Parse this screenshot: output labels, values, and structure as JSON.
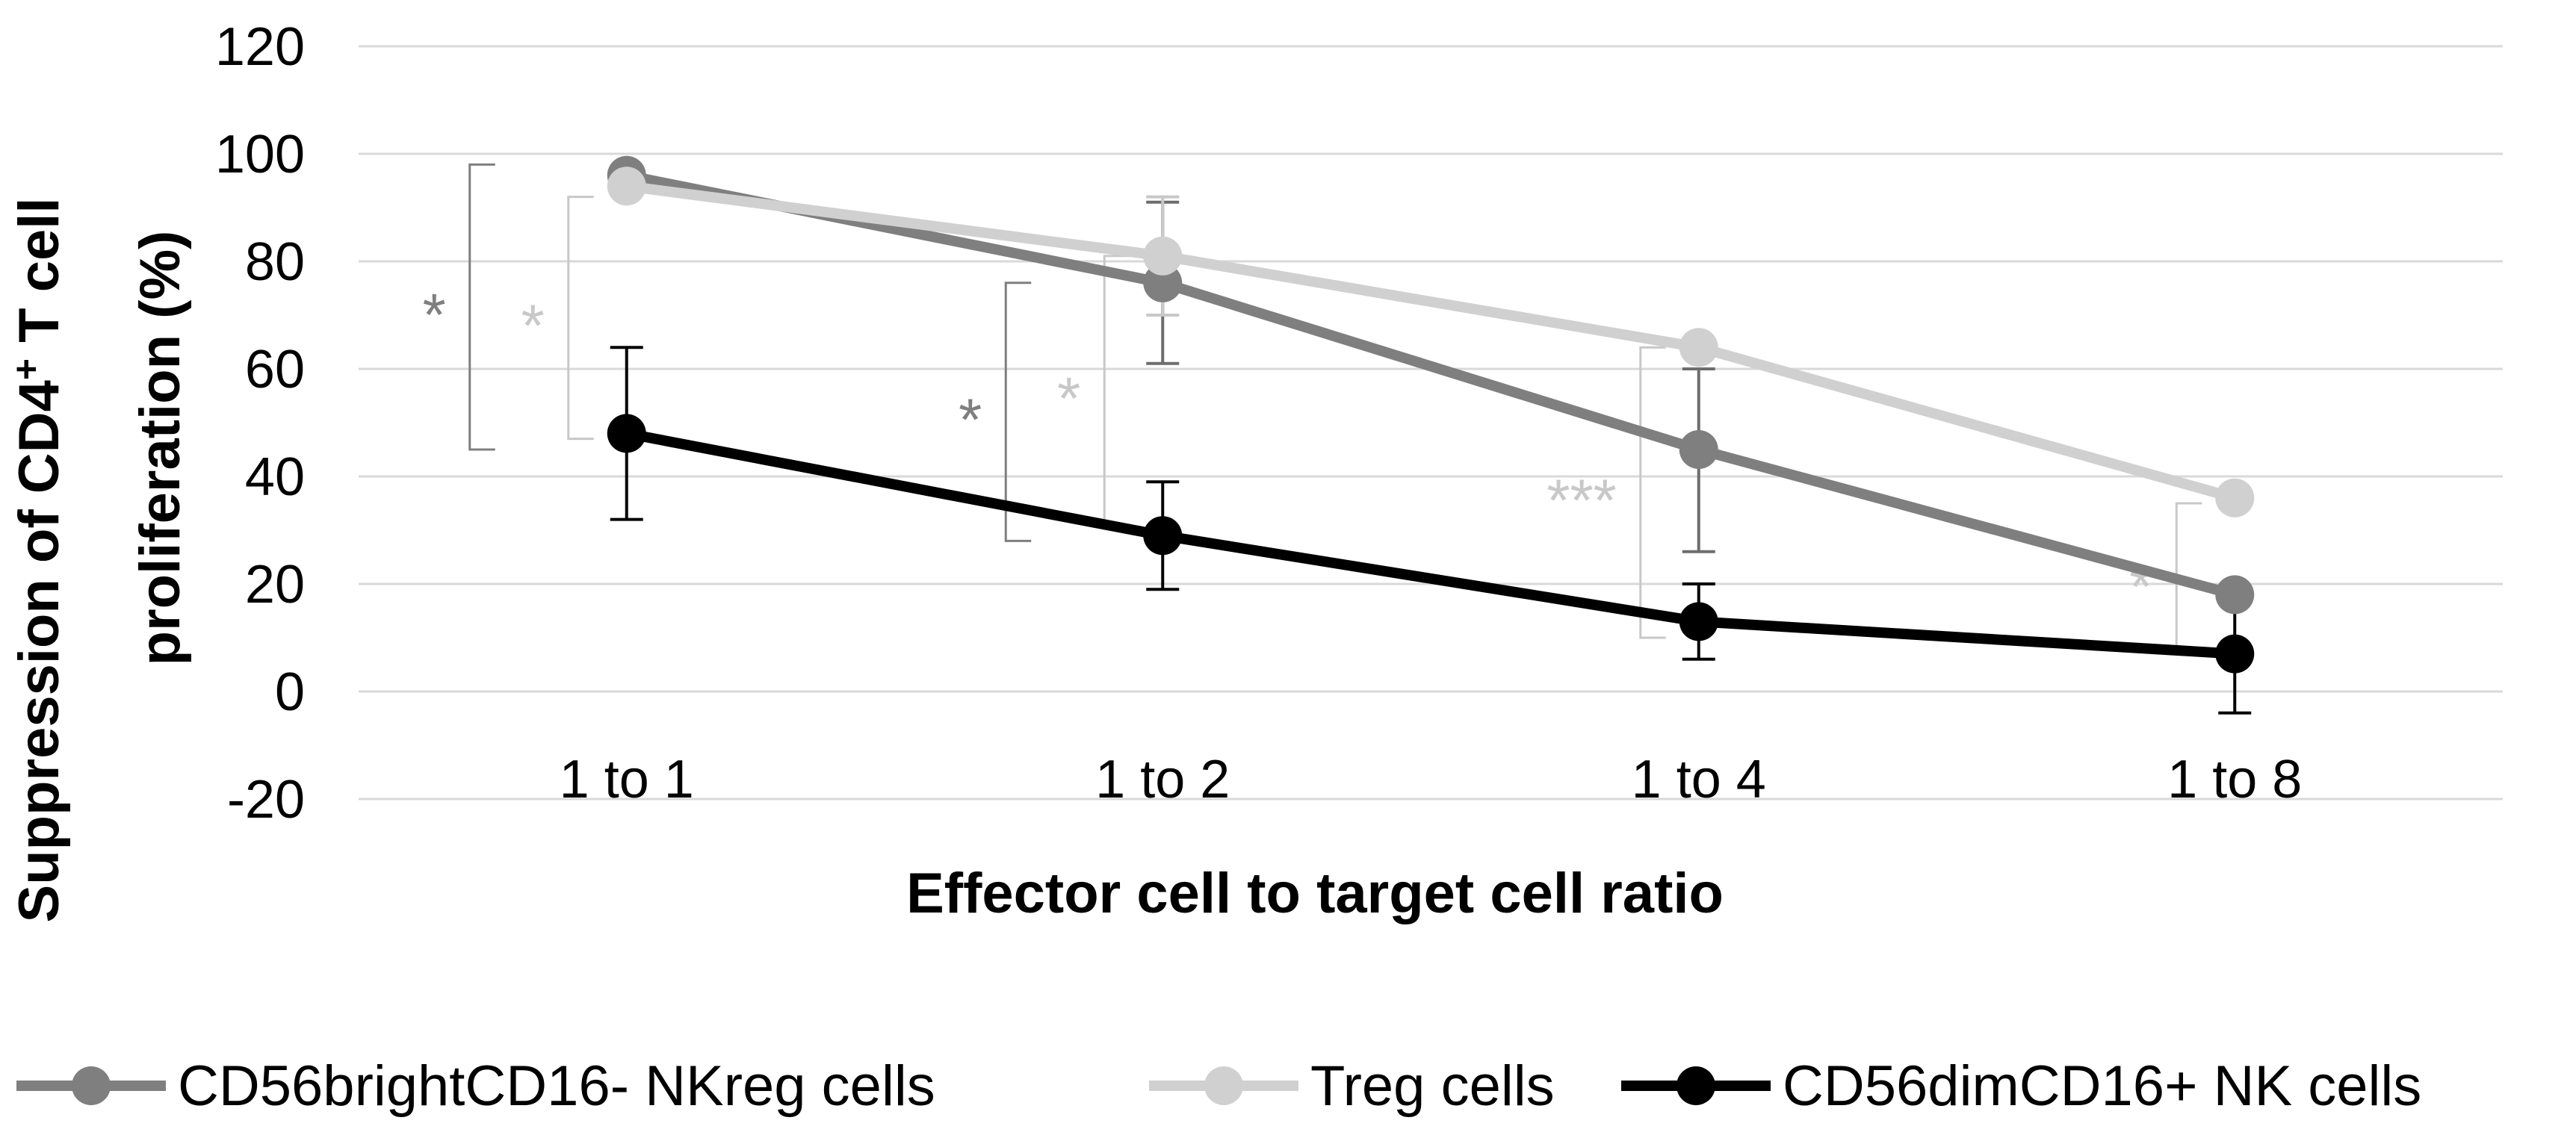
{
  "chart_data": {
    "type": "line",
    "title": "",
    "xlabel": "Effector cell to target cell ratio",
    "ylabel_line1": "Suppression of CD4",
    "ylabel_sup": "+",
    "ylabel_line1_tail": " T cell",
    "ylabel_line2": "proliferation (%)",
    "ylim": [
      -20,
      120
    ],
    "yticks": [
      -20,
      0,
      20,
      40,
      60,
      80,
      100,
      120
    ],
    "ytick_labels": [
      "-20",
      "0",
      "20",
      "40",
      "60",
      "80",
      "100",
      "120"
    ],
    "categories": [
      "1 to 1",
      "1 to 2",
      "1 to 4",
      "1 to 8"
    ],
    "grid": true,
    "legend_position": "bottom",
    "series": [
      {
        "name": "CD56brightCD16- NKreg cells",
        "color": "#7f7f7f",
        "values": [
          96,
          76,
          45,
          18
        ],
        "err_low": [
          null,
          61,
          26,
          null
        ],
        "err_high": [
          null,
          91,
          60,
          null
        ]
      },
      {
        "name": "Treg cells",
        "color": "#d0d0d0",
        "values": [
          94,
          81,
          64,
          36
        ],
        "err_low": [
          null,
          70,
          null,
          null
        ],
        "err_high": [
          null,
          92,
          null,
          null
        ]
      },
      {
        "name": "CD56dimCD16+ NK cells",
        "color": "#000000",
        "values": [
          48,
          29,
          13,
          7
        ],
        "err_low": [
          32,
          19,
          6,
          -4
        ],
        "err_high": [
          64,
          39,
          20,
          18
        ]
      }
    ],
    "significance": [
      {
        "category": 0,
        "label": "*",
        "color": "#7f7f7f",
        "y_top": 98,
        "y_bottom": 45,
        "offset": "far"
      },
      {
        "category": 0,
        "label": "*",
        "color": "#c8c8c8",
        "y_top": 92,
        "y_bottom": 47,
        "offset": "near"
      },
      {
        "category": 1,
        "label": "*",
        "color": "#7f7f7f",
        "y_top": 76,
        "y_bottom": 28,
        "offset": "far"
      },
      {
        "category": 1,
        "label": "*",
        "color": "#c8c8c8",
        "y_top": 81,
        "y_bottom": 31,
        "offset": "near"
      },
      {
        "category": 2,
        "label": "***",
        "color": "#c8c8c8",
        "y_top": 64,
        "y_bottom": 10,
        "offset": "near"
      },
      {
        "category": 3,
        "label": "*",
        "color": "#c8c8c8",
        "y_top": 35,
        "y_bottom": 7,
        "offset": "near"
      }
    ]
  }
}
